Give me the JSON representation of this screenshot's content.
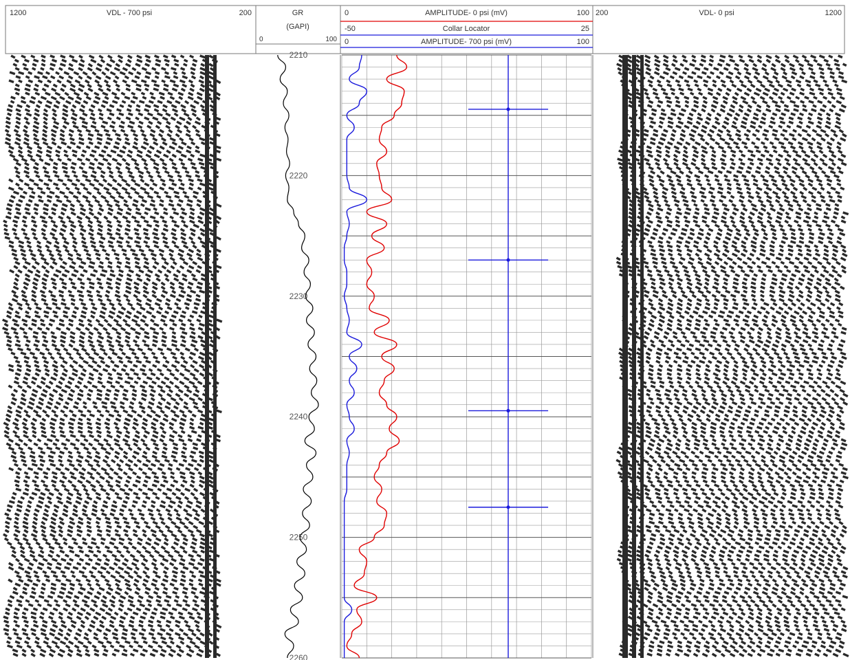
{
  "header": {
    "vdl_left": {
      "min": "1200",
      "title": "VDL - 700 psi",
      "max": "200"
    },
    "gr": {
      "title": "GR",
      "unit": "(GAPI)",
      "min": "0",
      "max": "100"
    },
    "amp0": {
      "min": "0",
      "title": "AMPLITUDE- 0 psi (mV)",
      "max": "100"
    },
    "ccl": {
      "min": "-50",
      "title": "Collar Locator",
      "max": "25"
    },
    "amp700": {
      "min": "0",
      "title": "AMPLITUDE- 700 psi (mV)",
      "max": "100"
    },
    "vdl_right": {
      "min": "200",
      "title": "VDL- 0 psi",
      "max": "1200"
    }
  },
  "colors": {
    "gr": "#000000",
    "amp0": "#e00000",
    "ccl": "#1a1adc",
    "amp700": "#1a1adc",
    "vdl": "#2a2a2a",
    "grid": "#9a9a9a",
    "grid_major": "#555555"
  },
  "chart_data": {
    "type": "line",
    "depth_range": [
      2210,
      2260
    ],
    "depth_labels": [
      "2210",
      "2220",
      "2230",
      "2240",
      "2250",
      "2260"
    ],
    "grid": true,
    "series": [
      {
        "name": "GR",
        "range": [
          0,
          100
        ],
        "depth": [
          2210,
          2211,
          2212,
          2213,
          2214,
          2215,
          2216,
          2217,
          2218,
          2219,
          2220,
          2221,
          2222,
          2223,
          2224,
          2225,
          2226,
          2227,
          2228,
          2229,
          2230,
          2231,
          2232,
          2233,
          2234,
          2235,
          2236,
          2237,
          2238,
          2239,
          2240,
          2241,
          2242,
          2243,
          2244,
          2245,
          2246,
          2247,
          2248,
          2249,
          2250,
          2251,
          2252,
          2253,
          2254,
          2255,
          2256,
          2257,
          2258,
          2259,
          2260
        ],
        "values": [
          24,
          34,
          27,
          36,
          31,
          38,
          33,
          37,
          35,
          39,
          34,
          38,
          36,
          44,
          50,
          58,
          54,
          63,
          57,
          65,
          59,
          68,
          60,
          70,
          62,
          72,
          64,
          73,
          66,
          75,
          63,
          70,
          58,
          72,
          60,
          68,
          56,
          66,
          55,
          64,
          52,
          60,
          48,
          58,
          45,
          55,
          40,
          50,
          33,
          44,
          36
        ]
      },
      {
        "name": "AMPLITUDE- 0 psi (mV)",
        "range": [
          0,
          100
        ],
        "depth": [
          2210,
          2211,
          2212,
          2213,
          2214,
          2215,
          2216,
          2217,
          2218,
          2219,
          2220,
          2221,
          2222,
          2223,
          2224,
          2225,
          2226,
          2227,
          2228,
          2229,
          2230,
          2231,
          2232,
          2233,
          2234,
          2235,
          2236,
          2237,
          2238,
          2239,
          2240,
          2241,
          2242,
          2243,
          2244,
          2245,
          2246,
          2247,
          2248,
          2249,
          2250,
          2251,
          2252,
          2253,
          2254,
          2255,
          2256,
          2257,
          2258,
          2259,
          2260
        ],
        "values": [
          22,
          26,
          18,
          25,
          24,
          21,
          16,
          15,
          18,
          14,
          15,
          16,
          20,
          10,
          18,
          12,
          17,
          10,
          12,
          10,
          13,
          11,
          19,
          13,
          22,
          16,
          21,
          17,
          15,
          18,
          22,
          19,
          23,
          18,
          15,
          13,
          16,
          14,
          18,
          17,
          13,
          7,
          10,
          9,
          5,
          14,
          6,
          8,
          4,
          2,
          7
        ]
      },
      {
        "name": "AMPLITUDE- 700 psi (mV)",
        "range": [
          0,
          100
        ],
        "depth": [
          2210,
          2211,
          2212,
          2213,
          2214,
          2215,
          2216,
          2217,
          2218,
          2219,
          2220,
          2221,
          2222,
          2223,
          2224,
          2225,
          2226,
          2227,
          2228,
          2229,
          2230,
          2231,
          2232,
          2233,
          2234,
          2235,
          2236,
          2237,
          2238,
          2239,
          2240,
          2241,
          2242,
          2243,
          2244,
          2245,
          2246,
          2247,
          2248,
          2249,
          2250,
          2251,
          2252,
          2253,
          2254,
          2255,
          2256,
          2257,
          2258,
          2259,
          2260
        ],
        "values": [
          8,
          7,
          3,
          10,
          7,
          2,
          5,
          2,
          2,
          2,
          2,
          3,
          10,
          2,
          3,
          2,
          1,
          1,
          2,
          2,
          1,
          2,
          3,
          2,
          8,
          3,
          6,
          3,
          5,
          2,
          3,
          5,
          2,
          3,
          2,
          2,
          2,
          1,
          1,
          1,
          1,
          1,
          1,
          1,
          1,
          1,
          4,
          1,
          1,
          1,
          1
        ]
      },
      {
        "name": "Collar Locator",
        "range": [
          -50,
          25
        ],
        "baseline": 0,
        "collar_depths": [
          2214.5,
          2227,
          2239.5,
          2247.5
        ],
        "collar_values": [
          -12,
          -12,
          -12,
          -12
        ]
      }
    ]
  }
}
